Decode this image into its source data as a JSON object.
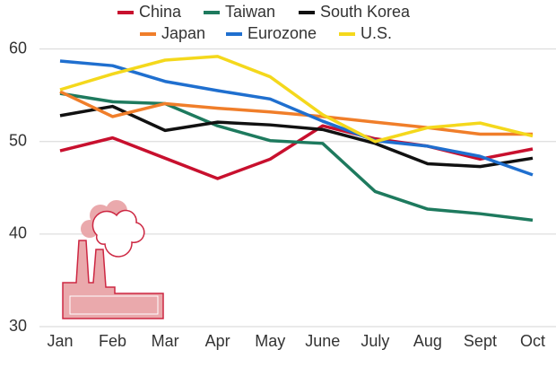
{
  "chart_data": {
    "type": "line",
    "categories": [
      "Jan",
      "Feb",
      "Mar",
      "Apr",
      "May",
      "June",
      "July",
      "Aug",
      "Sept",
      "Oct"
    ],
    "series": [
      {
        "name": "China",
        "color": "#c8102e",
        "values": [
          49.0,
          50.4,
          48.2,
          46.0,
          48.1,
          51.7,
          50.3,
          49.5,
          48.1,
          49.2
        ]
      },
      {
        "name": "Taiwan",
        "color": "#1e7a5e",
        "values": [
          55.2,
          54.3,
          54.1,
          51.7,
          50.1,
          49.8,
          44.6,
          42.7,
          42.2,
          41.5
        ]
      },
      {
        "name": "South Korea",
        "color": "#111111",
        "values": [
          52.8,
          53.8,
          51.2,
          52.1,
          51.8,
          51.3,
          49.8,
          47.6,
          47.3,
          48.2
        ]
      },
      {
        "name": "Japan",
        "color": "#f07e2a",
        "values": [
          55.4,
          52.7,
          54.1,
          53.6,
          53.2,
          52.7,
          52.1,
          51.5,
          50.8,
          50.8
        ]
      },
      {
        "name": "Eurozone",
        "color": "#1f6fcf",
        "values": [
          58.7,
          58.2,
          56.5,
          55.5,
          54.6,
          52.2,
          50.1,
          49.5,
          48.4,
          46.4
        ]
      },
      {
        "name": "U.S.",
        "color": "#f4d81c",
        "values": [
          55.6,
          57.3,
          58.8,
          59.2,
          57.0,
          52.9,
          50.0,
          51.5,
          52.0,
          50.6
        ]
      }
    ],
    "ylim": [
      30,
      62
    ],
    "yticks": [
      30,
      40,
      50,
      60
    ],
    "grid": true
  }
}
